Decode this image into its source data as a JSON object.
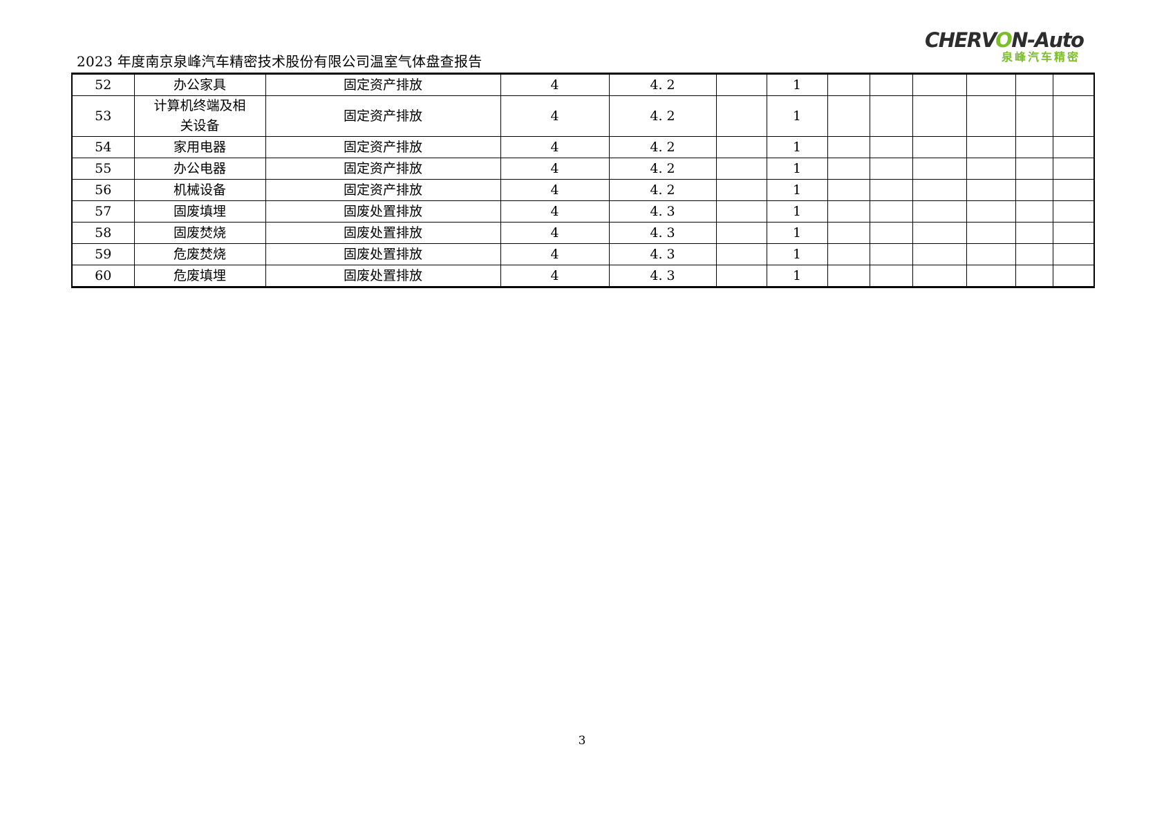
{
  "header": {
    "title": "2023 年度南京泉峰汽车精密技术股份有限公司温室气体盘查报告",
    "logo": {
      "brand_pre": "CHERV",
      "brand_o": "O",
      "brand_post": "N-Auto",
      "subtitle": "泉峰汽车精密",
      "accent_color": "#7bbd2a",
      "text_color": "#2d2d2d"
    }
  },
  "table": {
    "rows": [
      [
        "52",
        "办公家具",
        "固定资产排放",
        "4",
        "4. 2",
        "",
        "1",
        "",
        "",
        "",
        "",
        "",
        ""
      ],
      [
        "53",
        "计算机终端及相关设备",
        "固定资产排放",
        "4",
        "4. 2",
        "",
        "1",
        "",
        "",
        "",
        "",
        "",
        ""
      ],
      [
        "54",
        "家用电器",
        "固定资产排放",
        "4",
        "4. 2",
        "",
        "1",
        "",
        "",
        "",
        "",
        "",
        ""
      ],
      [
        "55",
        "办公电器",
        "固定资产排放",
        "4",
        "4. 2",
        "",
        "1",
        "",
        "",
        "",
        "",
        "",
        ""
      ],
      [
        "56",
        "机械设备",
        "固定资产排放",
        "4",
        "4. 2",
        "",
        "1",
        "",
        "",
        "",
        "",
        "",
        ""
      ],
      [
        "57",
        "固废填埋",
        "固废处置排放",
        "4",
        "4. 3",
        "",
        "1",
        "",
        "",
        "",
        "",
        "",
        ""
      ],
      [
        "58",
        "固废焚烧",
        "固废处置排放",
        "4",
        "4. 3",
        "",
        "1",
        "",
        "",
        "",
        "",
        "",
        ""
      ],
      [
        "59",
        "危废焚烧",
        "固废处置排放",
        "4",
        "4. 3",
        "",
        "1",
        "",
        "",
        "",
        "",
        "",
        ""
      ],
      [
        "60",
        "危废填埋",
        "固废处置排放",
        "4",
        "4. 3",
        "",
        "1",
        "",
        "",
        "",
        "",
        "",
        ""
      ]
    ]
  },
  "footer": {
    "page_number": "3"
  }
}
